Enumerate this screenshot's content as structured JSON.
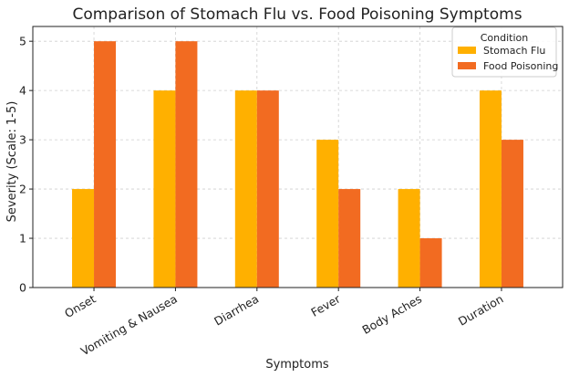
{
  "chart_data": {
    "type": "bar",
    "title": "Comparison of Stomach Flu vs. Food Poisoning Symptoms",
    "xlabel": "Symptoms",
    "ylabel": "Severity (Scale: 1-5)",
    "categories": [
      "Onset",
      "Vomiting & Nausea",
      "Diarrhea",
      "Fever",
      "Body Aches",
      "Duration"
    ],
    "series": [
      {
        "name": "Stomach Flu",
        "values": [
          2,
          4,
          4,
          3,
          2,
          4
        ],
        "color": "#FFB000"
      },
      {
        "name": "Food Poisoning",
        "values": [
          5,
          5,
          4,
          2,
          1,
          3
        ],
        "color": "#F26B21"
      }
    ],
    "ylim": [
      0,
      5.3
    ],
    "yticks": [
      0,
      1,
      2,
      3,
      4,
      5
    ],
    "grid": true,
    "legend": {
      "title": "Condition",
      "placement": "top-right"
    }
  }
}
